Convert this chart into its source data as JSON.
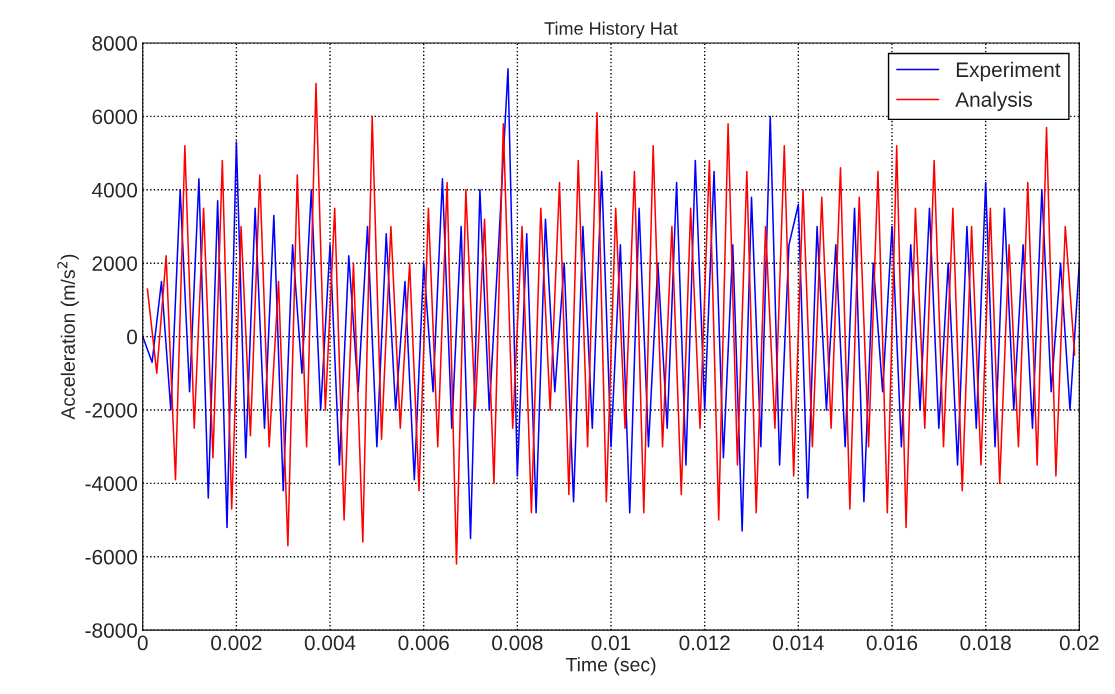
{
  "chart_data": {
    "type": "line",
    "title": "Time History Hat",
    "xlabel": "Time (sec)",
    "ylabel": "Acceleration (m/s$^{2}$)",
    "xlim": [
      0,
      0.02
    ],
    "xticks": [
      0,
      0.002,
      0.004,
      0.006,
      0.008,
      0.01,
      0.012,
      0.014,
      0.016,
      0.018,
      0.02
    ],
    "ylim": [
      -8000,
      8000
    ],
    "yticks": [
      -8000,
      -6000,
      -4000,
      -2000,
      0,
      2000,
      4000,
      6000,
      8000
    ],
    "grid": true,
    "legend": "top right",
    "line_style": "solid",
    "marker": "none",
    "series": [
      {
        "name": "Experiment",
        "color": "#0000ff",
        "x": [
          0,
          0.0002,
          0.0004,
          0.0006,
          0.0008,
          0.001,
          0.0012,
          0.0014,
          0.0016,
          0.0018,
          0.002,
          0.0022,
          0.0024,
          0.0026,
          0.0028,
          0.003,
          0.0032,
          0.0034,
          0.0036,
          0.0038,
          0.004,
          0.0042,
          0.0044,
          0.0046,
          0.0048,
          0.005,
          0.0052,
          0.0054,
          0.0056,
          0.0058,
          0.006,
          0.0062,
          0.0064,
          0.0066,
          0.0068,
          0.007,
          0.0072,
          0.0074,
          0.0076,
          0.0078,
          0.008,
          0.0082,
          0.0084,
          0.0086,
          0.0088,
          0.009,
          0.0092,
          0.0094,
          0.0096,
          0.0098,
          0.01,
          0.0102,
          0.0104,
          0.0106,
          0.0108,
          0.011,
          0.0112,
          0.0114,
          0.0116,
          0.0118,
          0.012,
          0.0122,
          0.0124,
          0.0126,
          0.0128,
          0.013,
          0.0132,
          0.0134,
          0.0136,
          0.0138,
          0.014,
          0.0142,
          0.0144,
          0.0146,
          0.0148,
          0.015,
          0.0152,
          0.0154,
          0.0156,
          0.0158,
          0.016,
          0.0162,
          0.0164,
          0.0166,
          0.0168,
          0.017,
          0.0172,
          0.0174,
          0.0176,
          0.0178,
          0.018,
          0.0182,
          0.0184,
          0.0186,
          0.0188,
          0.019,
          0.0192,
          0.0194,
          0.0196,
          0.0198,
          0.02
        ],
        "values": [
          0,
          -700,
          1500,
          -2000,
          4000,
          -1500,
          4300,
          -4400,
          3700,
          -5200,
          5300,
          -3300,
          3500,
          -2500,
          3300,
          -4200,
          2500,
          -1000,
          4000,
          -2000,
          2500,
          -3500,
          2200,
          -1500,
          3000,
          -3000,
          2800,
          -2000,
          1500,
          -3900,
          2000,
          -1500,
          4300,
          -2500,
          3000,
          -5500,
          4000,
          -2000,
          2500,
          7300,
          -3800,
          2800,
          -4800,
          3200,
          -1500,
          2000,
          -4500,
          3000,
          -2500,
          4500,
          -3000,
          2500,
          -4800,
          3500,
          -3000,
          2000,
          -2500,
          4200,
          -3500,
          4800,
          -2000,
          4500,
          -3300,
          2500,
          -5300,
          3800,
          -3000,
          6000,
          -3500,
          2500,
          3600,
          -4400,
          3000,
          -2000,
          2500,
          -3000,
          3500,
          -4500,
          2000,
          -1500,
          3000,
          -3000,
          2500,
          -2000,
          3500,
          -2500,
          2000,
          -3500,
          3000,
          -2500,
          4200,
          -3000,
          3500,
          -2000,
          2500,
          -2500,
          4000,
          -1500,
          2000,
          -2000,
          2000
        ]
      },
      {
        "name": "Analysis",
        "color": "#ff0000",
        "x": [
          0.0001,
          0.0003,
          0.0005,
          0.0007,
          0.0009,
          0.0011,
          0.0013,
          0.0015,
          0.0017,
          0.0019,
          0.0021,
          0.0023,
          0.0025,
          0.0027,
          0.0029,
          0.0031,
          0.0033,
          0.0035,
          0.0037,
          0.0039,
          0.0041,
          0.0043,
          0.0045,
          0.0047,
          0.0049,
          0.0051,
          0.0053,
          0.0055,
          0.0057,
          0.0059,
          0.0061,
          0.0063,
          0.0065,
          0.0067,
          0.0069,
          0.0071,
          0.0073,
          0.0075,
          0.0077,
          0.0079,
          0.0081,
          0.0083,
          0.0085,
          0.0087,
          0.0089,
          0.0091,
          0.0093,
          0.0095,
          0.0097,
          0.0099,
          0.0101,
          0.0103,
          0.0105,
          0.0107,
          0.0109,
          0.0111,
          0.0113,
          0.0115,
          0.0117,
          0.0119,
          0.0121,
          0.0123,
          0.0125,
          0.0127,
          0.0129,
          0.0131,
          0.0133,
          0.0135,
          0.0137,
          0.0139,
          0.0141,
          0.0143,
          0.0145,
          0.0147,
          0.0149,
          0.0151,
          0.0153,
          0.0155,
          0.0157,
          0.0159,
          0.0161,
          0.0163,
          0.0165,
          0.0167,
          0.0169,
          0.0171,
          0.0173,
          0.0175,
          0.0177,
          0.0179,
          0.0181,
          0.0183,
          0.0185,
          0.0187,
          0.0189,
          0.0191,
          0.0193,
          0.0195,
          0.0197,
          0.0199
        ],
        "values": [
          1300,
          -1000,
          2200,
          -3900,
          5200,
          -2500,
          3500,
          -3300,
          4800,
          -4700,
          3000,
          -2700,
          4400,
          -3000,
          1500,
          -5700,
          4400,
          -3000,
          6900,
          -2000,
          3500,
          -5000,
          2000,
          -5600,
          6000,
          -2800,
          3000,
          -2500,
          2000,
          -4200,
          3500,
          -3000,
          4200,
          -6200,
          4000,
          -2000,
          3200,
          -4000,
          5800,
          -2500,
          3000,
          -4800,
          3500,
          -2000,
          4200,
          -4300,
          4800,
          -3000,
          6100,
          -4500,
          3500,
          -2500,
          4500,
          -4800,
          5200,
          -3000,
          3000,
          -4300,
          3500,
          -2500,
          4800,
          -5000,
          5800,
          -3500,
          4500,
          -4800,
          3000,
          -2500,
          5200,
          -3800,
          4000,
          -3000,
          3800,
          -2500,
          4600,
          -4700,
          3800,
          -3000,
          4500,
          -4800,
          5200,
          -5200,
          3500,
          -2500,
          4800,
          -3000,
          3500,
          -4200,
          3000,
          -3500,
          3500,
          -4000,
          2500,
          -3000,
          4200,
          -3500,
          5700,
          -3800,
          3000,
          -500
        ]
      }
    ]
  }
}
